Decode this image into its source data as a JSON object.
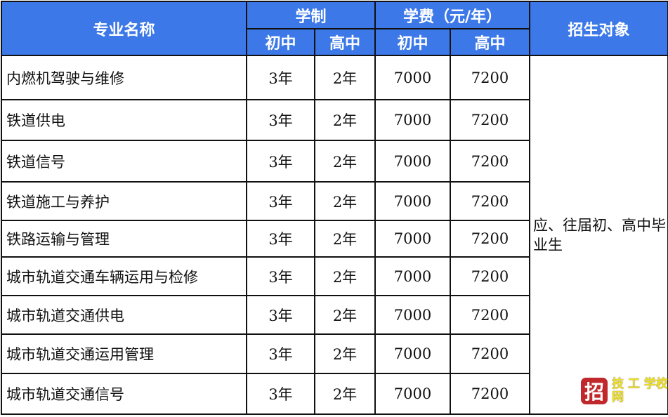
{
  "header": {
    "major": "专业名称",
    "duration": "学制",
    "tuition": "学费（元/年）",
    "target": "招生对象",
    "sub": [
      "初中",
      "高中",
      "初中",
      "高中"
    ]
  },
  "rows": [
    {
      "name": "内燃机驾驶与维修",
      "d1": "3年",
      "d2": "2年",
      "f1": "7000",
      "f2": "7200"
    },
    {
      "name": "铁道供电",
      "d1": "3年",
      "d2": "2年",
      "f1": "7000",
      "f2": "7200"
    },
    {
      "name": "铁道信号",
      "d1": "3年",
      "d2": "2年",
      "f1": "7000",
      "f2": "7200"
    },
    {
      "name": "铁道施工与养护",
      "d1": "3年",
      "d2": "2年",
      "f1": "7000",
      "f2": "7200"
    },
    {
      "name": "铁路运输与管理",
      "d1": "3年",
      "d2": "2年",
      "f1": "7000",
      "f2": "7200"
    },
    {
      "name": "城市轨道交通车辆运用与检修",
      "d1": "3年",
      "d2": "2年",
      "f1": "7000",
      "f2": "7200"
    },
    {
      "name": "城市轨道交通供电",
      "d1": "3年",
      "d2": "2年",
      "f1": "7000",
      "f2": "7200"
    },
    {
      "name": "城市轨道交通运用管理",
      "d1": "3年",
      "d2": "2年",
      "f1": "7000",
      "f2": "7200"
    },
    {
      "name": "城市轨道交通信号",
      "d1": "3年",
      "d2": "2年",
      "f1": "7000",
      "f2": "7200"
    }
  ],
  "target_text": "应、往届初、高中毕业生",
  "watermark": {
    "mark": "招",
    "text": "技 工 学校网"
  },
  "colors": {
    "header_bg": "#3c78e8",
    "logo_red": "#c0282b",
    "logo_yellow": "#f0e020"
  }
}
